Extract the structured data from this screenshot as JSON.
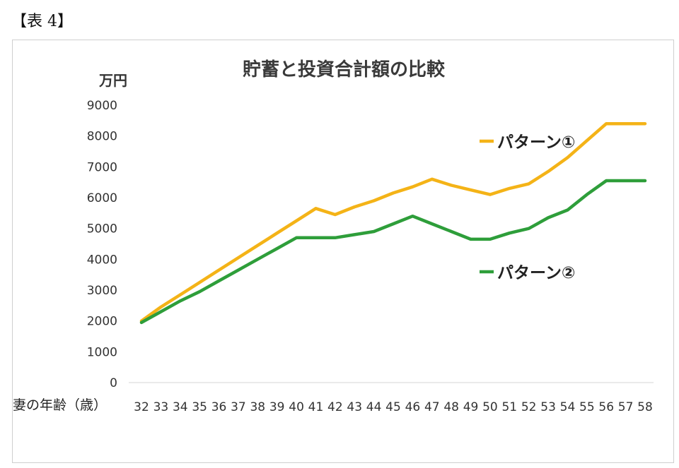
{
  "caption": "【表 4】",
  "chart_data": {
    "type": "line",
    "title": "貯蓄と投資合計額の比較",
    "ylabel": "万円",
    "xlabel": "妻の年齢（歳）",
    "ylim": [
      0,
      9000
    ],
    "yticks": [
      0,
      1000,
      2000,
      3000,
      4000,
      5000,
      6000,
      7000,
      8000,
      9000
    ],
    "x": [
      32,
      33,
      34,
      35,
      36,
      37,
      38,
      39,
      40,
      41,
      42,
      43,
      44,
      45,
      46,
      47,
      48,
      49,
      50,
      51,
      52,
      53,
      54,
      55,
      56,
      57,
      58
    ],
    "grid": false,
    "series": [
      {
        "name": "パターン①",
        "color": "#F4B317",
        "values": [
          2000,
          2450,
          2850,
          3250,
          3650,
          4050,
          4450,
          4850,
          5250,
          5650,
          5450,
          5700,
          5900,
          6150,
          6350,
          6600,
          6400,
          6250,
          6100,
          6300,
          6450,
          6850,
          7300,
          7850,
          8400,
          8400,
          8400
        ]
      },
      {
        "name": "パターン②",
        "color": "#2E9E3A",
        "values": [
          1950,
          2300,
          2650,
          2950,
          3300,
          3650,
          4000,
          4350,
          4700,
          4700,
          4700,
          4800,
          4900,
          5150,
          5400,
          5150,
          4900,
          4650,
          4650,
          4850,
          5000,
          5350,
          5600,
          6100,
          6550,
          6550,
          6550
        ]
      }
    ]
  }
}
